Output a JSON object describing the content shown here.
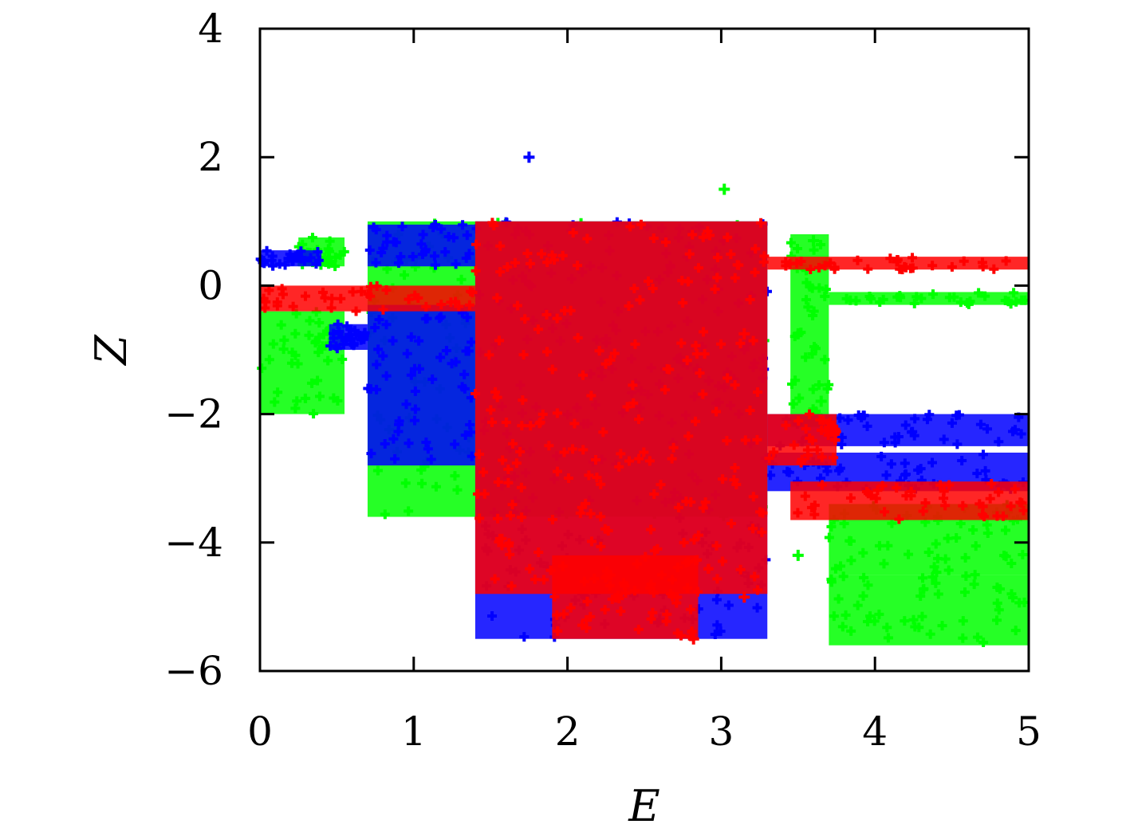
{
  "chart_data": {
    "type": "scatter",
    "title": "",
    "xlabel": "E",
    "ylabel": "Z",
    "xlim": [
      0,
      5
    ],
    "ylim": [
      -6,
      4
    ],
    "xticks": [
      0,
      1,
      2,
      3,
      4,
      5
    ],
    "yticks": [
      -6,
      -4,
      -2,
      0,
      2,
      4
    ],
    "xtick_labels": [
      "0",
      "1",
      "2",
      "3",
      "4",
      "5"
    ],
    "ytick_labels": [
      "−6",
      "−4",
      "−2",
      "0",
      "2",
      "4"
    ],
    "grid": false,
    "legend": "none",
    "series": [
      {
        "color": "#00ff00",
        "regions": [
          {
            "x": [
              0.0,
              0.55
            ],
            "y": [
              -2.0,
              -0.4
            ]
          },
          {
            "x": [
              0.25,
              0.55
            ],
            "y": [
              0.3,
              0.75
            ]
          },
          {
            "x": [
              0.7,
              3.3
            ],
            "y": [
              -3.6,
              1.0
            ]
          },
          {
            "x": [
              3.7,
              5.0
            ],
            "y": [
              -0.3,
              -0.1
            ]
          },
          {
            "x": [
              3.7,
              5.0
            ],
            "y": [
              -4.5,
              -3.4
            ]
          },
          {
            "x": [
              3.7,
              5.0
            ],
            "y": [
              -5.6,
              -4.5
            ]
          },
          {
            "x": [
              3.45,
              3.7
            ],
            "y": [
              -2.2,
              0.8
            ]
          }
        ],
        "outliers": [
          [
            3.02,
            1.5
          ],
          [
            3.5,
            -4.2
          ],
          [
            3.65,
            -1.8
          ],
          [
            3.5,
            -0.75
          ],
          [
            3.6,
            0.7
          ]
        ]
      },
      {
        "color": "#0000ff",
        "regions": [
          {
            "x": [
              0.0,
              0.4
            ],
            "y": [
              0.3,
              0.55
            ]
          },
          {
            "x": [
              0.45,
              0.7
            ],
            "y": [
              -1.0,
              -0.6
            ]
          },
          {
            "x": [
              0.7,
              1.4
            ],
            "y": [
              -2.8,
              -0.3
            ]
          },
          {
            "x": [
              0.7,
              1.4
            ],
            "y": [
              0.3,
              0.95
            ]
          },
          {
            "x": [
              1.4,
              3.3
            ],
            "y": [
              -5.5,
              1.0
            ]
          },
          {
            "x": [
              3.3,
              5.0
            ],
            "y": [
              -2.5,
              -2.0
            ]
          },
          {
            "x": [
              3.3,
              5.0
            ],
            "y": [
              -3.2,
              -2.6
            ]
          }
        ],
        "outliers": [
          [
            1.75,
            2.0
          ],
          [
            1.95,
            -4.7
          ],
          [
            2.1,
            -4.8
          ],
          [
            2.6,
            -5.2
          ]
        ]
      },
      {
        "color": "#ff0000",
        "regions": [
          {
            "x": [
              0.0,
              1.4
            ],
            "y": [
              -0.4,
              0.0
            ]
          },
          {
            "x": [
              1.4,
              3.3
            ],
            "y": [
              -4.8,
              1.0
            ]
          },
          {
            "x": [
              3.3,
              5.0
            ],
            "y": [
              0.25,
              0.45
            ]
          },
          {
            "x": [
              3.3,
              3.75
            ],
            "y": [
              -2.8,
              -2.0
            ]
          },
          {
            "x": [
              3.45,
              5.0
            ],
            "y": [
              -3.65,
              -3.05
            ]
          },
          {
            "x": [
              1.9,
              2.85
            ],
            "y": [
              -5.5,
              -4.2
            ]
          }
        ],
        "outliers": [
          [
            3.15,
            -0.75
          ],
          [
            3.15,
            -4.85
          ],
          [
            2.82,
            -5.5
          ]
        ]
      }
    ]
  }
}
